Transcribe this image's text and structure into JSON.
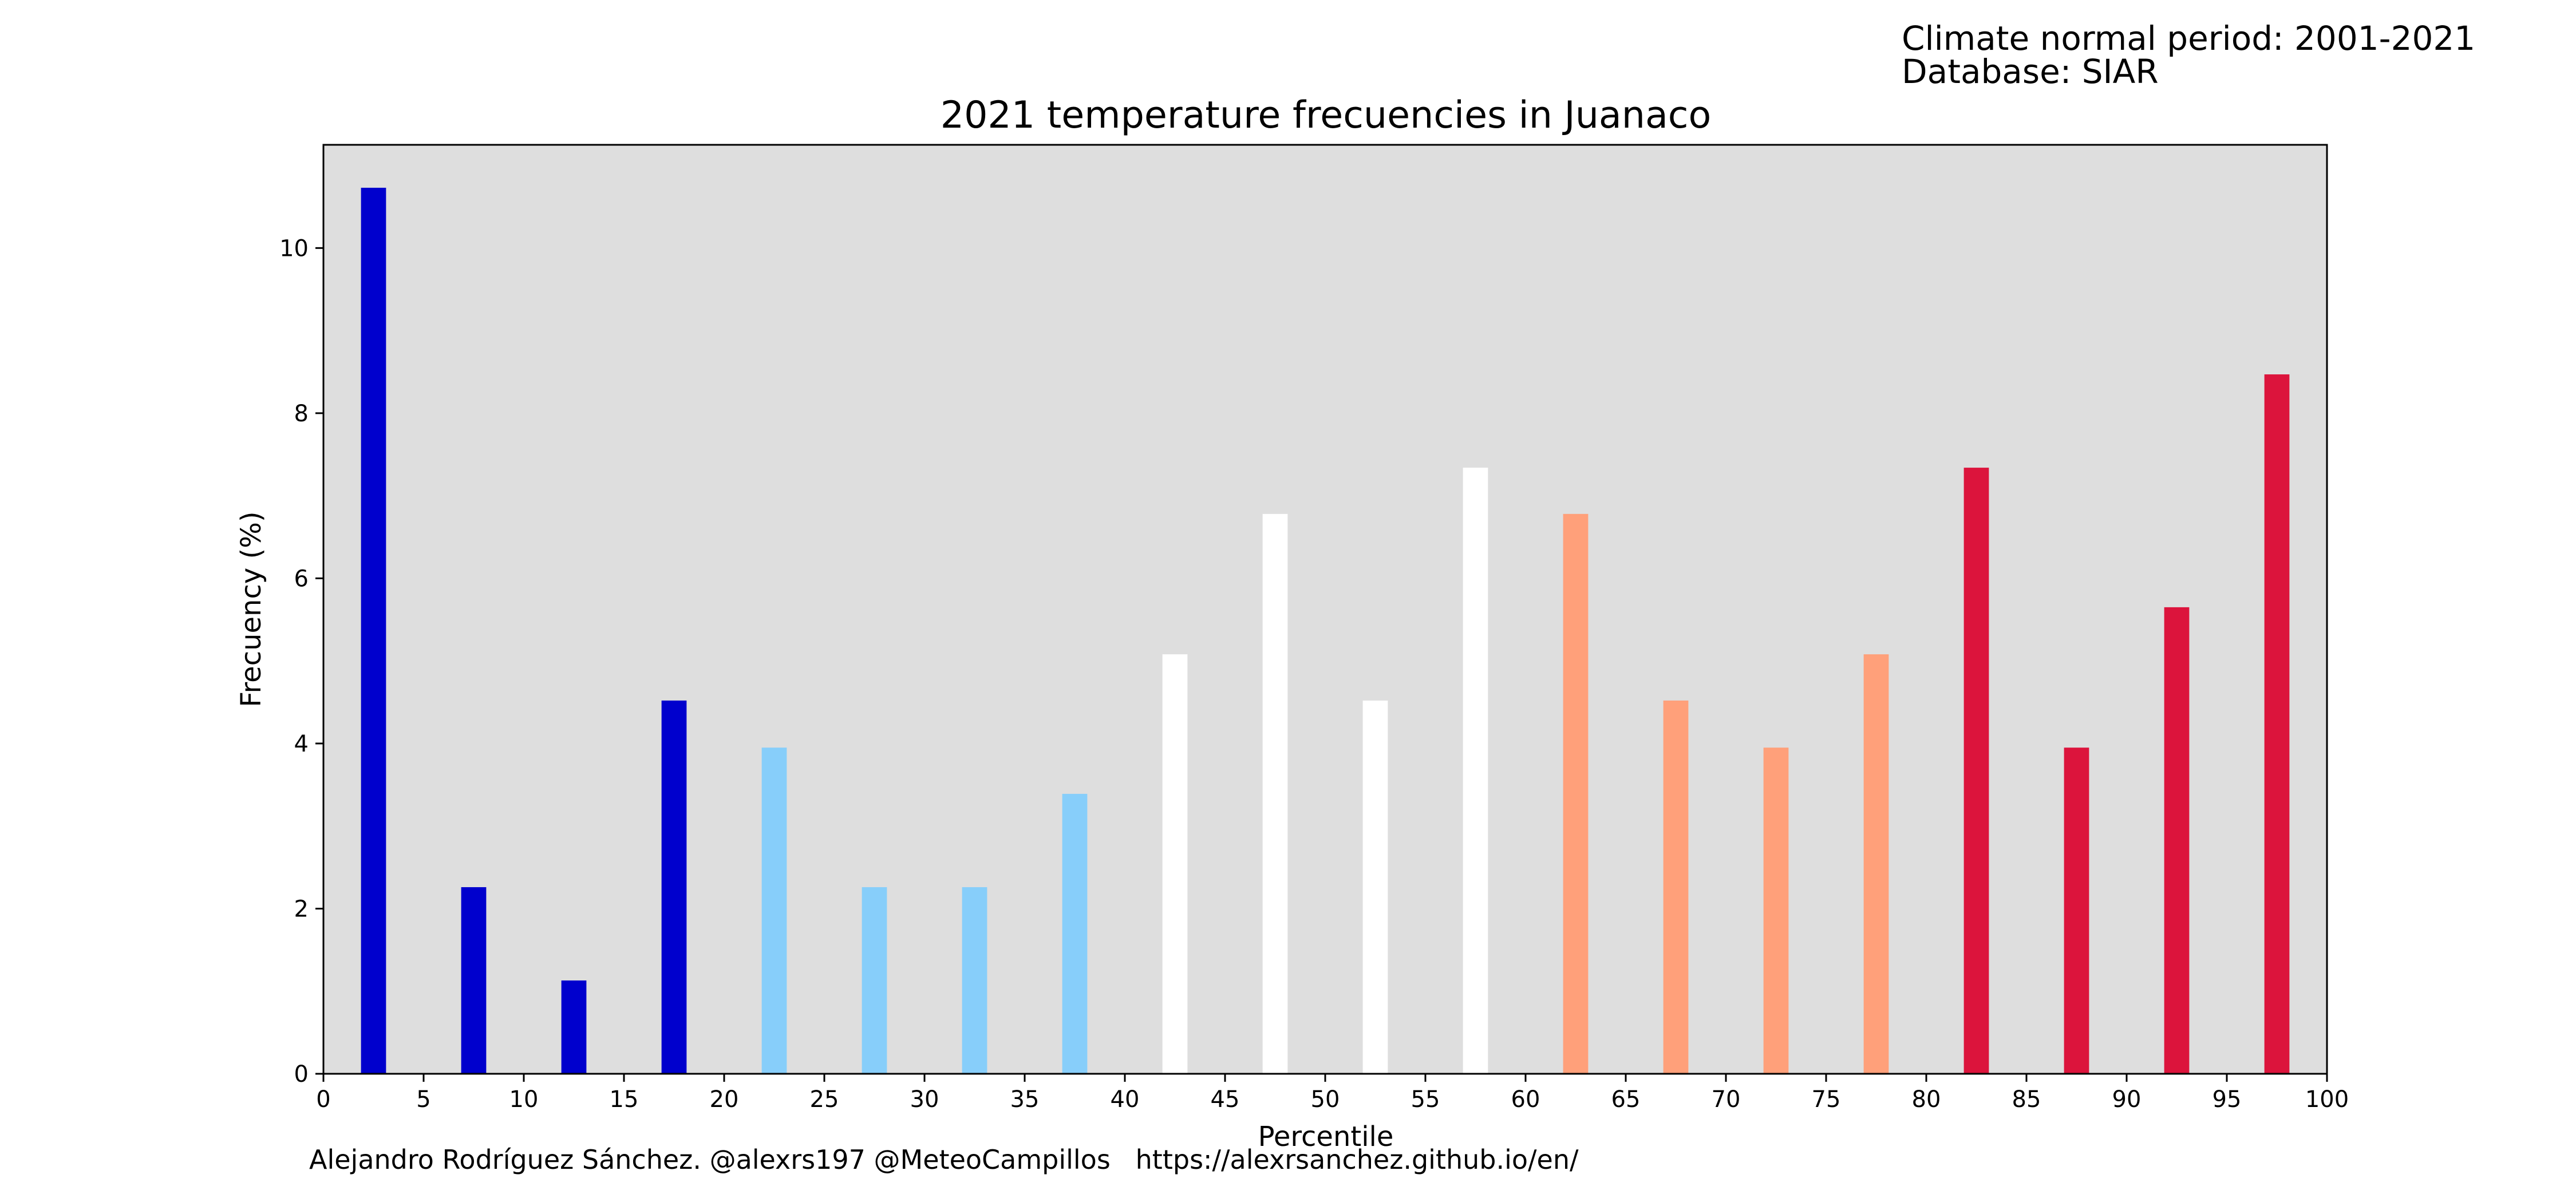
{
  "header": {
    "normal_period": "Climate normal period: 2001-2021",
    "database": "Database: SIAR"
  },
  "footer": {
    "credits": "Alejandro Rodríguez Sánchez. @alexrs197 @MeteoCampillos   https://alexrsanchez.github.io/en/"
  },
  "chart_data": {
    "type": "bar",
    "title": "2021 temperature frecuencies in Juanaco",
    "xlabel": "Percentile",
    "ylabel": "Frecuency (%)",
    "xlim": [
      0,
      100
    ],
    "ylim": [
      0,
      11.25
    ],
    "xticks": [
      0,
      5,
      10,
      15,
      20,
      25,
      30,
      35,
      40,
      45,
      50,
      55,
      60,
      65,
      70,
      75,
      80,
      85,
      90,
      95,
      100
    ],
    "yticks": [
      0,
      2,
      4,
      6,
      8,
      10
    ],
    "grid": false,
    "plot_background": "#dedede",
    "bar_width": 1.25,
    "x": [
      2.5,
      7.5,
      12.5,
      17.5,
      22.5,
      27.5,
      32.5,
      37.5,
      42.5,
      47.5,
      52.5,
      57.5,
      62.5,
      67.5,
      72.5,
      77.5,
      82.5,
      87.5,
      92.5,
      97.5
    ],
    "values": [
      10.73,
      2.26,
      1.13,
      4.52,
      3.95,
      2.26,
      2.26,
      3.39,
      5.08,
      6.78,
      4.52,
      7.34,
      6.78,
      4.52,
      3.95,
      5.08,
      7.34,
      3.95,
      5.65,
      8.47
    ],
    "colors": [
      "#0000cd",
      "#0000cd",
      "#0000cd",
      "#0000cd",
      "#87cefa",
      "#87cefa",
      "#87cefa",
      "#87cefa",
      "#ffffff",
      "#ffffff",
      "#ffffff",
      "#ffffff",
      "#ffa07a",
      "#ffa07a",
      "#ffa07a",
      "#ffa07a",
      "#dc143c",
      "#dc143c",
      "#dc143c",
      "#dc143c"
    ]
  }
}
